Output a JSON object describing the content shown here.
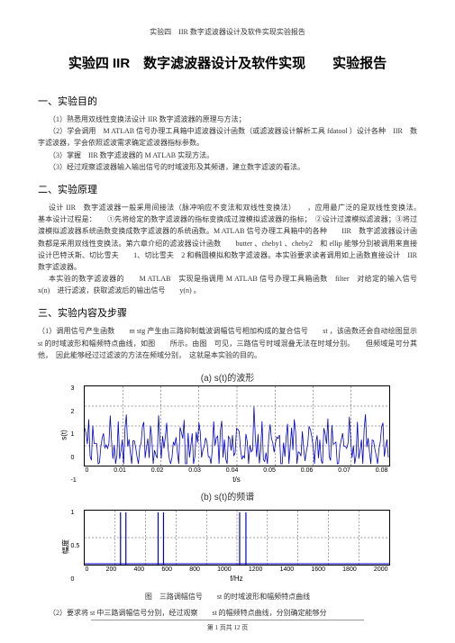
{
  "header": "实验四　IIR 数字滤波器设计及软件实现实验报告",
  "title": "实验四 IIR　数字滤波器设计及软件实现　　实验报告",
  "sec1": {
    "heading": "一、实验目的",
    "p1": "（1）熟悉用双线性变换法设计 IIR 数字滤波器的原理与方法；",
    "p2": "（2）学会调用　M ATLAB 信号办理工具箱中滤波器设计函数（或滤波器设计解析工具 fdatool ）设计各种　IIR　数字滤波器，学会依照滤波需求确定滤波器指标参数。",
    "p3": "（3）掌握　IIR 数字滤波器的 M ATLAB 实现方法。",
    "p4": "（3）经过观察滤波器输入输出信号的时域波形及其频谱，建立数字滤波的看法。"
  },
  "sec2": {
    "heading": "二、实验原理",
    "p1": "设计 IIR　数字滤波器一般采用间接法（脉冲响应不变法和双线性变换法）　　，应用最广泛的是双线性变换法。　　基本设计过程是：　　①先将给定的数字滤波器的指标变换成过渡模拟滤波器的指标；　②设计过渡模拟滤波器；③将过渡模拟滤波器系统函数变换成数字滤波器的系统函数。M ATLAB 信号办理工具箱中的各种　　IIR　数字滤波器设计函数都是采用双线性变换法。第六章介绍的滤波器设计函数　　butter 、cheby1 、cheby2　和 ellip 能够分别被调用来直接设计巴特沃斯、切比雪夫　　1、切比雪夫　2 和椭圆模拟和数字滤波器。本实验要求读者调用如上函数直接设计　IIR　数字滤波器。",
    "p2": "本实验的数字滤波器的　　M ATLAB　实现是指调用 M ATLAB 信号办理工具箱函数　filter　对给定的输入信号　x(n)　进行滤波，获取滤波后的输出信号　　y(n) 。"
  },
  "sec3": {
    "heading": "三、实验内容及步骤",
    "p1": "（1）调用信号产生函数　　m stg 产生由三路抑制载波调幅信号相加构成的复合信号　　st ，该函数还会自动绘图显示　　st 的时域波形和幅频特点曲线，如图　　所示。由图　可见，三路信号时域混叠无法在时域分别。　　但频域是可分其他，　因此能够经过过滤波的方法在频域分别，　这就是本实验的目的。",
    "p2": "（2）要求将 st 中三路调幅信号分别，经过观察　　st 的幅频特点曲线，分别确定能够分"
  },
  "chartA": {
    "title": "(a) s(t)的波形",
    "ylabel": "s(t)",
    "xlabel": "t/s",
    "yticks": [
      "3",
      "2",
      "1",
      "0",
      "-1"
    ],
    "xticks": [
      "0",
      "0.01",
      "0.02",
      "0.03",
      "0.04",
      "0.05",
      "0.06",
      "0.07",
      "0.08"
    ],
    "line_color": "#0000cc",
    "grid_color": "#000000",
    "background": "#ffffff"
  },
  "chartB": {
    "title": "(b) s(t)的频谱",
    "ylabel": "幅度",
    "xlabel": "f/Hz",
    "yticks": [
      "1",
      "0.5",
      "0"
    ],
    "xticks": [
      "0",
      "200",
      "400",
      "600",
      "800",
      "1000",
      "1200",
      "1400",
      "1600",
      "1800",
      "2000"
    ],
    "line_color": "#0000cc",
    "grid_color": "#000000",
    "background": "#ffffff"
  },
  "caption": "图　三路调幅信号　　st 的时域波形和幅频特点曲线",
  "footer": "第 1 页共 12 页"
}
